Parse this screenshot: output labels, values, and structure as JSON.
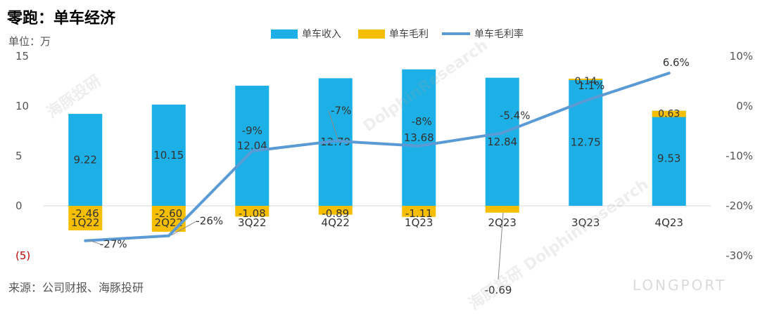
{
  "title": "零跑：单车经济",
  "unit_label": "单位：万",
  "source": "来源：公司财报、海豚投研",
  "watermarks": [
    "海豚投研",
    "DolphinResearch",
    "LONGPORT"
  ],
  "colors": {
    "revenue": "#1CB0E6",
    "margin": "#F5BF00",
    "rate": "#5B9BD5",
    "negative_tick": "#C00000"
  },
  "chart_data": {
    "type": "bar",
    "categories": [
      "1Q22",
      "2Q22",
      "3Q22",
      "4Q22",
      "1Q23",
      "2Q23",
      "3Q23",
      "4Q23"
    ],
    "series": [
      {
        "name": "单车收入",
        "type": "bar",
        "axis": "left",
        "values": [
          9.22,
          10.15,
          12.04,
          12.79,
          13.68,
          12.84,
          12.75,
          9.53
        ]
      },
      {
        "name": "单车毛利",
        "type": "bar",
        "axis": "left",
        "stacked": true,
        "values": [
          -2.46,
          -2.6,
          -1.08,
          -0.89,
          -1.11,
          -0.69,
          0.14,
          0.63
        ],
        "labels": [
          "-2.46",
          "-2.60",
          "-1.08",
          "-0.89",
          "-1.11",
          "-0.69",
          "0.14",
          "0.63"
        ]
      },
      {
        "name": "单车毛利率",
        "type": "line",
        "axis": "right",
        "values": [
          -27,
          -26,
          -9,
          -7,
          -8,
          -5.4,
          1.1,
          6.6
        ],
        "labels": [
          "-27%",
          "-26%",
          "-9%",
          "-7%",
          "-8%",
          "-5.4%",
          "1.1%",
          "6.6%"
        ]
      }
    ],
    "left_axis": {
      "ylim": [
        -5,
        15
      ],
      "ticks": [
        "(5)",
        "0",
        "5",
        "10",
        "15"
      ]
    },
    "right_axis": {
      "ylim": [
        -30,
        10
      ],
      "ticks": [
        "-30%",
        "-20%",
        "-10%",
        "0%",
        "10%"
      ]
    },
    "legend_position": "top-center",
    "grid": false
  }
}
